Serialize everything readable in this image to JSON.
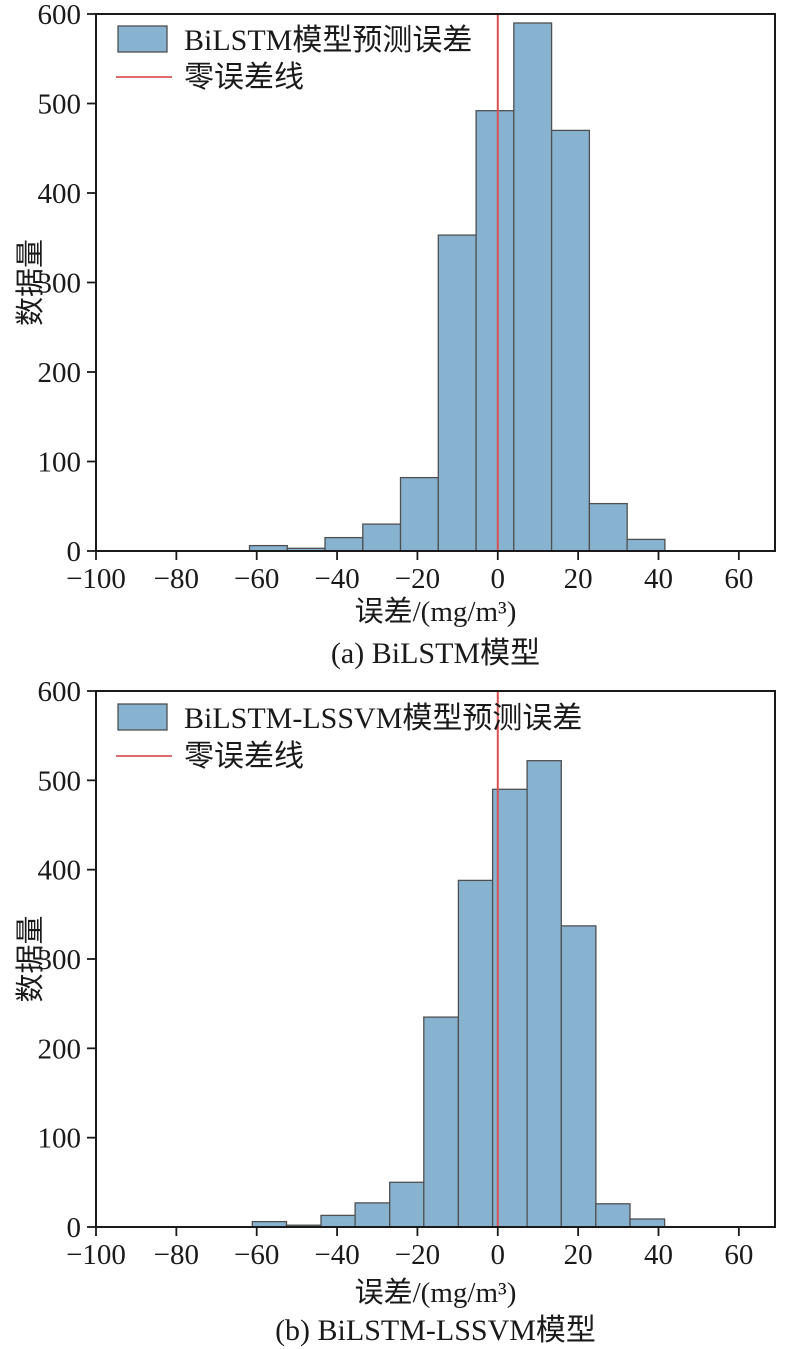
{
  "figure": {
    "background": "#ffffff",
    "panel_count": 2
  },
  "chart_data": [
    {
      "type": "bar",
      "subtype": "histogram",
      "panel_caption": "(a) BiLSTM模型",
      "series_label": "BiLSTM模型预测误差",
      "zero_line_label": "零误差线",
      "xlabel": "误差/(mg/m³)",
      "ylabel": "数据量",
      "xlim": [
        -100,
        69
      ],
      "ylim": [
        0,
        600
      ],
      "xticks": [
        -100,
        -80,
        -60,
        -40,
        -20,
        0,
        20,
        40,
        60
      ],
      "yticks": [
        0,
        100,
        200,
        300,
        400,
        500,
        600
      ],
      "bin_edges": [
        -61.8,
        -52.4,
        -43.0,
        -33.6,
        -24.2,
        -14.8,
        -5.4,
        4.0,
        13.4,
        22.8,
        32.2,
        41.6
      ],
      "counts": [
        6,
        3,
        15,
        30,
        82,
        353,
        492,
        590,
        470,
        53,
        13
      ],
      "zero_line_x": 0,
      "legend_position": "upper-left",
      "grid": false,
      "colors": {
        "bar_fill": "#87b3d1",
        "bar_edge": "#4f4f4f",
        "zero_line": "#d95050",
        "frame": "#1a1a1a",
        "text": "#1a1a1a"
      }
    },
    {
      "type": "bar",
      "subtype": "histogram",
      "panel_caption": "(b) BiLSTM-LSSVM模型",
      "series_label": "BiLSTM-LSSVM模型预测误差",
      "zero_line_label": "零误差线",
      "xlabel": "误差/(mg/m³)",
      "ylabel": "数据量",
      "xlim": [
        -100,
        69
      ],
      "ylim": [
        0,
        600
      ],
      "xticks": [
        -100,
        -80,
        -60,
        -40,
        -20,
        0,
        20,
        40,
        60
      ],
      "yticks": [
        0,
        100,
        200,
        300,
        400,
        500,
        600
      ],
      "bin_edges": [
        -61.1,
        -52.6,
        -44.0,
        -35.5,
        -26.9,
        -18.4,
        -9.8,
        -1.3,
        7.3,
        15.8,
        24.4,
        32.9,
        41.5
      ],
      "counts": [
        6,
        2,
        13,
        27,
        50,
        235,
        388,
        490,
        522,
        337,
        26,
        9
      ],
      "zero_line_x": 0,
      "legend_position": "upper-left",
      "grid": false,
      "colors": {
        "bar_fill": "#87b3d1",
        "bar_edge": "#4f4f4f",
        "zero_line": "#d95050",
        "frame": "#1a1a1a",
        "text": "#1a1a1a"
      }
    }
  ]
}
